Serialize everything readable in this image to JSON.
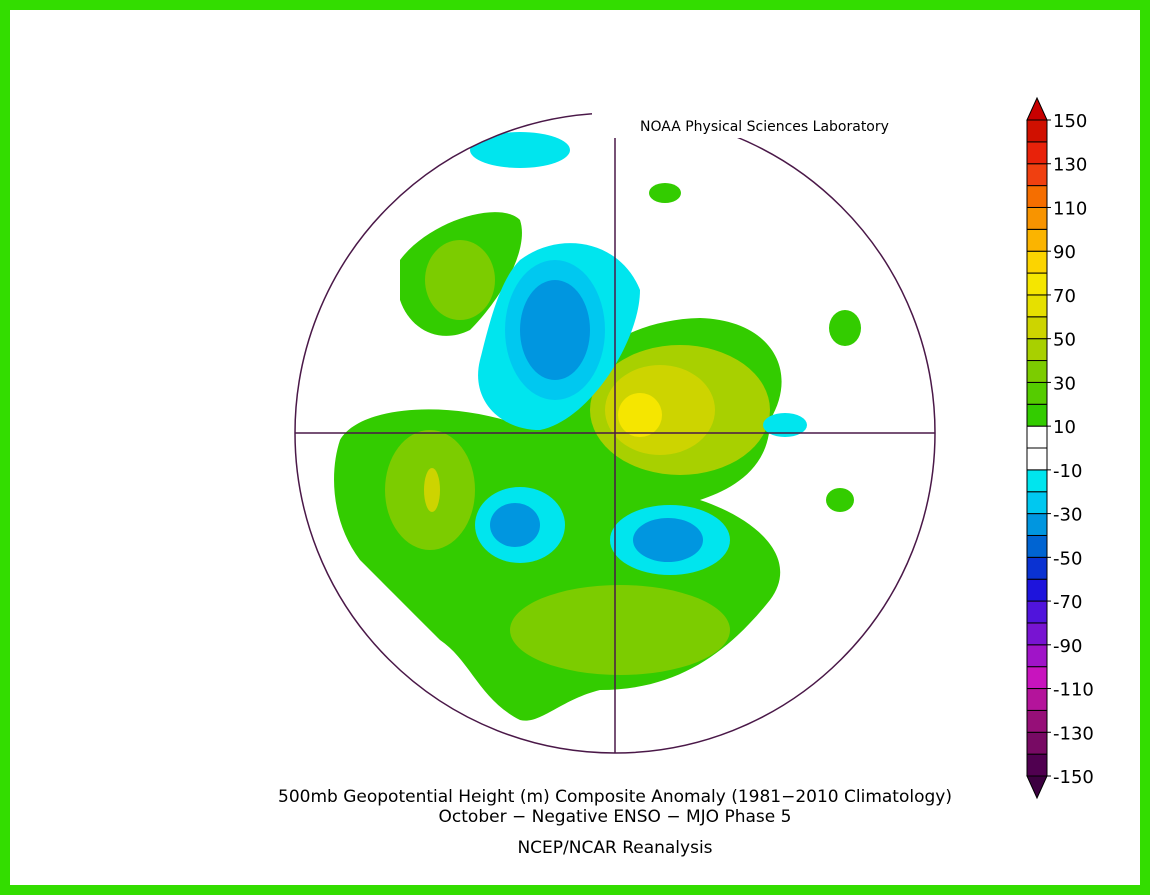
{
  "credit": "NOAA Physical Sciences Laboratory",
  "title": [
    "500mb Geopotential Height (m) Composite Anomaly (1981−2010 Climatology)",
    "October − Negative ENSO − MJO Phase 5"
  ],
  "source": "NCEP/NCAR Reanalysis",
  "colorbar": {
    "lim": [
      -150,
      150
    ],
    "ticks": [
      150,
      130,
      110,
      90,
      70,
      50,
      30,
      10,
      -10,
      -30,
      -50,
      -70,
      -90,
      -110,
      -130,
      -150
    ],
    "colors": [
      "#500050",
      "#780a64",
      "#960f78",
      "#b4149b",
      "#c814be",
      "#a014c8",
      "#7814d2",
      "#5014dc",
      "#1e14dc",
      "#0a32d2",
      "#0064d2",
      "#0096e0",
      "#00c8f0",
      "#00e5ee",
      "#ffffff",
      "#ffffff",
      "#33cc00",
      "#55cc00",
      "#7ccc00",
      "#a8d000",
      "#cdd400",
      "#e6e000",
      "#f5e600",
      "#fcd400",
      "#fbb400",
      "#f89400",
      "#f56e00",
      "#f04010",
      "#e8220a",
      "#d01000"
    ],
    "under_color": "#3c0040",
    "over_color": "#c80000"
  }
}
